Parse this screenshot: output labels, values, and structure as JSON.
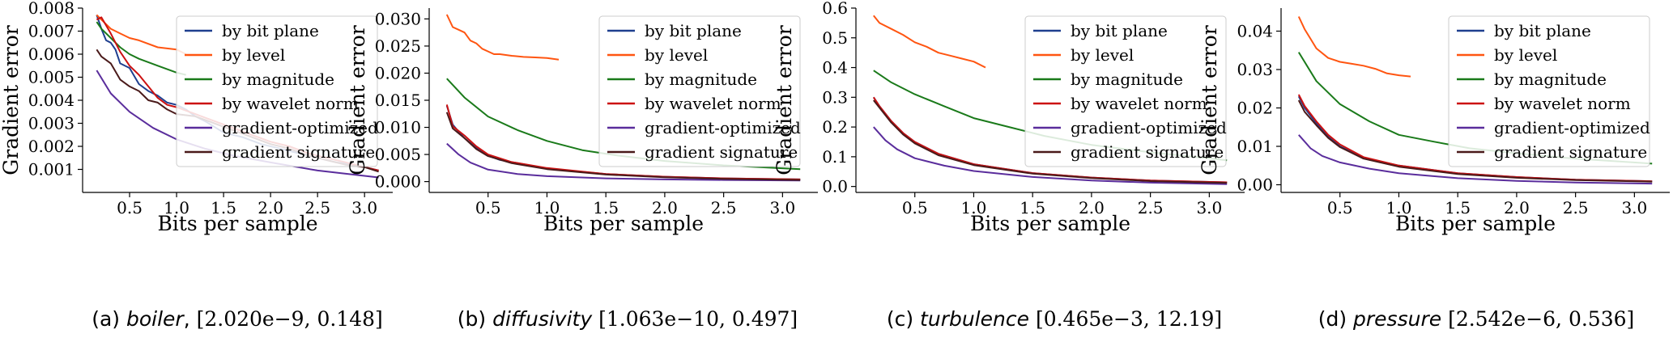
{
  "chart_data": [
    {
      "type": "line",
      "caption": {
        "prefix": "(a)",
        "dataset": "boiler",
        "sep": ",",
        "range": "[2.020e−9, 0.148]"
      },
      "xlabel": "Bits per sample",
      "ylabel": "Gradient error",
      "xlim": [
        0.0,
        3.3
      ],
      "ylim": [
        0.0,
        0.008
      ],
      "xticks": [
        0.5,
        1.0,
        1.5,
        2.0,
        2.5,
        3.0
      ],
      "xtick_labels": [
        "0.5",
        "1.0",
        "1.5",
        "2.0",
        "2.5",
        "3.0"
      ],
      "yticks": [
        0.001,
        0.002,
        0.003,
        0.004,
        0.005,
        0.006,
        0.007,
        0.008
      ],
      "ytick_labels": [
        "0.001",
        "0.002",
        "0.003",
        "0.004",
        "0.005",
        "0.006",
        "0.007",
        "0.008"
      ],
      "legend_position": "top-right",
      "series": [
        {
          "name": "by bit plane",
          "color": "#1f3f8f",
          "x": [
            0.15,
            0.2,
            0.25,
            0.3,
            0.35,
            0.4,
            0.5,
            0.6,
            0.7,
            0.8,
            0.9,
            1.0,
            1.1,
            1.2,
            1.3,
            1.5,
            1.7,
            1.9,
            2.1,
            2.3,
            2.5,
            2.7,
            2.9,
            3.15
          ],
          "y": [
            0.0077,
            0.0071,
            0.0066,
            0.0065,
            0.0062,
            0.0056,
            0.0054,
            0.0047,
            0.0044,
            0.0042,
            0.0039,
            0.0038,
            0.0036,
            0.0033,
            0.0031,
            0.0026,
            0.0024,
            0.0021,
            0.0019,
            0.0017,
            0.0015,
            0.0013,
            0.0012,
            0.00095
          ]
        },
        {
          "name": "by level",
          "color": "#ff5511",
          "x": [
            0.15,
            0.2,
            0.3,
            0.4,
            0.5,
            0.6,
            0.8,
            1.0,
            1.1
          ],
          "y": [
            0.0077,
            0.0075,
            0.0071,
            0.0069,
            0.0067,
            0.0066,
            0.0063,
            0.0062,
            0.006
          ]
        },
        {
          "name": "by magnitude",
          "color": "#1a7a1a",
          "x": [
            0.15,
            0.2,
            0.3,
            0.4,
            0.5,
            0.6,
            0.8,
            1.0,
            1.1
          ],
          "y": [
            0.0074,
            0.0071,
            0.0067,
            0.0063,
            0.006,
            0.0058,
            0.0055,
            0.0052,
            0.0051
          ]
        },
        {
          "name": "by wavelet norm",
          "color": "#cc1111",
          "x": [
            0.15,
            0.2,
            0.3,
            0.4,
            0.5,
            0.6,
            0.7,
            0.8,
            0.9,
            1.0,
            1.2,
            1.4,
            1.6,
            1.8,
            2.0,
            2.2,
            2.4,
            2.6,
            2.8,
            3.0,
            3.15
          ],
          "y": [
            0.0075,
            0.0076,
            0.0069,
            0.0061,
            0.0055,
            0.0051,
            0.0046,
            0.0041,
            0.0038,
            0.0037,
            0.0034,
            0.0031,
            0.0028,
            0.0025,
            0.0022,
            0.002,
            0.0017,
            0.0015,
            0.0013,
            0.0011,
            0.00095
          ]
        },
        {
          "name": "gradient-optimized",
          "color": "#5a2d9c",
          "x": [
            0.15,
            0.3,
            0.5,
            0.75,
            1.0,
            1.3,
            1.6,
            2.0,
            2.5,
            3.15
          ],
          "y": [
            0.0053,
            0.0043,
            0.0035,
            0.0028,
            0.0023,
            0.0019,
            0.0016,
            0.0013,
            0.00095,
            0.00065
          ]
        },
        {
          "name": "gradient signature",
          "color": "#4a1a1a",
          "x": [
            0.15,
            0.2,
            0.3,
            0.4,
            0.5,
            0.6,
            0.7,
            0.8,
            0.9,
            1.0,
            1.2,
            1.4,
            1.6,
            1.8,
            2.0,
            2.2,
            2.4,
            2.6,
            2.8,
            3.0,
            3.15
          ],
          "y": [
            0.0062,
            0.0059,
            0.0056,
            0.0049,
            0.0046,
            0.0044,
            0.004,
            0.0039,
            0.0036,
            0.0034,
            0.0033,
            0.003,
            0.0027,
            0.0024,
            0.0021,
            0.0019,
            0.0016,
            0.0014,
            0.0012,
            0.0011,
            0.0009
          ]
        }
      ]
    },
    {
      "type": "line",
      "caption": {
        "prefix": "(b)",
        "dataset": "diffusivity",
        "sep": "",
        "range": "[1.063e−10, 0.497]"
      },
      "xlabel": "Bits per sample",
      "ylabel": "Gradient error",
      "xlim": [
        0.0,
        3.3
      ],
      "ylim": [
        -0.002,
        0.032
      ],
      "xticks": [
        0.5,
        1.0,
        1.5,
        2.0,
        2.5,
        3.0
      ],
      "xtick_labels": [
        "0.5",
        "1.0",
        "1.5",
        "2.0",
        "2.5",
        "3.0"
      ],
      "yticks": [
        0.0,
        0.005,
        0.01,
        0.015,
        0.02,
        0.025,
        0.03
      ],
      "ytick_labels": [
        "0.000",
        "0.005",
        "0.010",
        "0.015",
        "0.020",
        "0.025",
        "0.030"
      ],
      "legend_position": "top-right",
      "series": [
        {
          "name": "by bit plane",
          "color": "#1f3f8f",
          "x": [
            0.15,
            0.2,
            0.25,
            0.3,
            0.4,
            0.5,
            0.6,
            0.8,
            1.0,
            1.5,
            2.0,
            2.5,
            3.15
          ],
          "y": [
            0.014,
            0.0105,
            0.0092,
            0.008,
            0.0062,
            0.0048,
            0.004,
            0.0032,
            0.0024,
            0.0014,
            0.0009,
            0.0006,
            0.0004
          ]
        },
        {
          "name": "by level",
          "color": "#ff5511",
          "x": [
            0.15,
            0.2,
            0.25,
            0.3,
            0.35,
            0.4,
            0.45,
            0.5,
            0.55,
            0.6,
            0.7,
            0.8,
            0.9,
            1.0,
            1.1
          ],
          "y": [
            0.0308,
            0.0285,
            0.028,
            0.0275,
            0.026,
            0.0255,
            0.0245,
            0.024,
            0.0235,
            0.0235,
            0.0232,
            0.023,
            0.0229,
            0.0228,
            0.0225
          ]
        },
        {
          "name": "by magnitude",
          "color": "#1a7a1a",
          "x": [
            0.15,
            0.3,
            0.5,
            0.75,
            1.0,
            1.3,
            1.6,
            2.0,
            2.5,
            3.15
          ],
          "y": [
            0.019,
            0.0155,
            0.012,
            0.0095,
            0.0075,
            0.0058,
            0.0048,
            0.0038,
            0.003,
            0.0023
          ]
        },
        {
          "name": "by wavelet norm",
          "color": "#cc1111",
          "x": [
            0.15,
            0.2,
            0.3,
            0.4,
            0.5,
            0.7,
            1.0,
            1.5,
            2.0,
            2.5,
            3.15
          ],
          "y": [
            0.0142,
            0.0102,
            0.0085,
            0.0065,
            0.005,
            0.0036,
            0.0025,
            0.0014,
            0.0009,
            0.0006,
            0.0004
          ]
        },
        {
          "name": "gradient-optimized",
          "color": "#5a2d9c",
          "x": [
            0.15,
            0.25,
            0.35,
            0.5,
            0.75,
            1.0,
            1.5,
            2.0,
            2.5,
            3.15
          ],
          "y": [
            0.007,
            0.005,
            0.0035,
            0.0022,
            0.0014,
            0.001,
            0.0006,
            0.0004,
            0.0003,
            0.0002
          ]
        },
        {
          "name": "gradient signature",
          "color": "#4a1a1a",
          "x": [
            0.15,
            0.2,
            0.3,
            0.4,
            0.5,
            0.7,
            1.0,
            1.5,
            2.0,
            2.5,
            3.15
          ],
          "y": [
            0.0128,
            0.0098,
            0.008,
            0.006,
            0.0047,
            0.0034,
            0.0023,
            0.0013,
            0.0008,
            0.0005,
            0.0003
          ]
        }
      ]
    },
    {
      "type": "line",
      "caption": {
        "prefix": "(c)",
        "dataset": "turbulence",
        "sep": "",
        "range": "[0.465e−3, 12.19]"
      },
      "xlabel": "Bits per sample",
      "ylabel": "Gradient error",
      "xlim": [
        0.0,
        3.3
      ],
      "ylim": [
        -0.02,
        0.6
      ],
      "xticks": [
        0.5,
        1.0,
        1.5,
        2.0,
        2.5,
        3.0
      ],
      "xtick_labels": [
        "0.5",
        "1.0",
        "1.5",
        "2.0",
        "2.5",
        "3.0"
      ],
      "yticks": [
        0.0,
        0.1,
        0.2,
        0.3,
        0.4,
        0.5,
        0.6
      ],
      "ytick_labels": [
        "0.0",
        "0.1",
        "0.2",
        "0.3",
        "0.4",
        "0.5",
        "0.6"
      ],
      "legend_position": "top-right",
      "series": [
        {
          "name": "by bit plane",
          "color": "#1f3f8f",
          "x": [
            0.15,
            0.2,
            0.3,
            0.4,
            0.5,
            0.7,
            1.0,
            1.5,
            2.0,
            2.5,
            3.15
          ],
          "y": [
            0.3,
            0.27,
            0.22,
            0.18,
            0.15,
            0.11,
            0.075,
            0.045,
            0.03,
            0.02,
            0.014
          ]
        },
        {
          "name": "by level",
          "color": "#ff5511",
          "x": [
            0.15,
            0.2,
            0.3,
            0.4,
            0.5,
            0.6,
            0.7,
            0.8,
            0.9,
            1.0,
            1.1
          ],
          "y": [
            0.575,
            0.55,
            0.53,
            0.51,
            0.485,
            0.47,
            0.45,
            0.44,
            0.43,
            0.42,
            0.4
          ]
        },
        {
          "name": "by magnitude",
          "color": "#1a7a1a",
          "x": [
            0.15,
            0.3,
            0.5,
            0.75,
            1.0,
            1.3,
            1.6,
            2.0,
            2.5,
            3.15
          ],
          "y": [
            0.39,
            0.35,
            0.31,
            0.27,
            0.23,
            0.2,
            0.17,
            0.14,
            0.115,
            0.088
          ]
        },
        {
          "name": "by wavelet norm",
          "color": "#cc1111",
          "x": [
            0.15,
            0.2,
            0.3,
            0.4,
            0.5,
            0.7,
            1.0,
            1.5,
            2.0,
            2.5,
            3.15
          ],
          "y": [
            0.3,
            0.27,
            0.22,
            0.18,
            0.15,
            0.11,
            0.075,
            0.045,
            0.03,
            0.02,
            0.014
          ]
        },
        {
          "name": "gradient-optimized",
          "color": "#5a2d9c",
          "x": [
            0.15,
            0.25,
            0.35,
            0.5,
            0.75,
            1.0,
            1.5,
            2.0,
            2.5,
            3.15
          ],
          "y": [
            0.2,
            0.155,
            0.125,
            0.095,
            0.07,
            0.052,
            0.032,
            0.02,
            0.013,
            0.008
          ]
        },
        {
          "name": "gradient signature",
          "color": "#4a1a1a",
          "x": [
            0.15,
            0.2,
            0.3,
            0.4,
            0.5,
            0.7,
            1.0,
            1.5,
            2.0,
            2.5,
            3.15
          ],
          "y": [
            0.29,
            0.265,
            0.215,
            0.175,
            0.145,
            0.105,
            0.072,
            0.043,
            0.028,
            0.018,
            0.012
          ]
        }
      ]
    },
    {
      "type": "line",
      "caption": {
        "prefix": "(d)",
        "dataset": "pressure",
        "sep": "",
        "range": "[2.542e−6, 0.536]"
      },
      "xlabel": "Bits per sample",
      "ylabel": "Gradient error",
      "xlim": [
        0.0,
        3.3
      ],
      "ylim": [
        -0.002,
        0.046
      ],
      "xticks": [
        0.5,
        1.0,
        1.5,
        2.0,
        2.5,
        3.0
      ],
      "xtick_labels": [
        "0.5",
        "1.0",
        "1.5",
        "2.0",
        "2.5",
        "3.0"
      ],
      "yticks": [
        0.0,
        0.01,
        0.02,
        0.03,
        0.04
      ],
      "ytick_labels": [
        "0.00",
        "0.01",
        "0.02",
        "0.03",
        "0.04"
      ],
      "legend_position": "top-right",
      "series": [
        {
          "name": "by bit plane",
          "color": "#1f3f8f",
          "x": [
            0.15,
            0.2,
            0.3,
            0.4,
            0.5,
            0.7,
            1.0,
            1.5,
            2.0,
            2.5,
            3.15
          ],
          "y": [
            0.023,
            0.02,
            0.016,
            0.0125,
            0.01,
            0.007,
            0.005,
            0.003,
            0.002,
            0.0013,
            0.0009
          ]
        },
        {
          "name": "by level",
          "color": "#ff5511",
          "x": [
            0.15,
            0.2,
            0.25,
            0.3,
            0.4,
            0.5,
            0.6,
            0.7,
            0.8,
            0.9,
            1.0,
            1.1
          ],
          "y": [
            0.0438,
            0.0405,
            0.038,
            0.0355,
            0.033,
            0.032,
            0.0315,
            0.031,
            0.0302,
            0.029,
            0.0285,
            0.0282
          ]
        },
        {
          "name": "by magnitude",
          "color": "#1a7a1a",
          "x": [
            0.15,
            0.3,
            0.5,
            0.75,
            1.0,
            1.3,
            1.6,
            2.0,
            2.5,
            3.15
          ],
          "y": [
            0.0345,
            0.027,
            0.021,
            0.0165,
            0.013,
            0.0112,
            0.0095,
            0.0082,
            0.0068,
            0.0055
          ]
        },
        {
          "name": "by wavelet norm",
          "color": "#cc1111",
          "x": [
            0.15,
            0.2,
            0.3,
            0.4,
            0.5,
            0.7,
            1.0,
            1.5,
            2.0,
            2.5,
            3.15
          ],
          "y": [
            0.0235,
            0.0205,
            0.0165,
            0.013,
            0.0105,
            0.0072,
            0.005,
            0.003,
            0.002,
            0.0013,
            0.0009
          ]
        },
        {
          "name": "gradient-optimized",
          "color": "#5a2d9c",
          "x": [
            0.15,
            0.25,
            0.35,
            0.5,
            0.75,
            1.0,
            1.5,
            2.0,
            2.5,
            3.15
          ],
          "y": [
            0.013,
            0.0095,
            0.0075,
            0.0058,
            0.0042,
            0.003,
            0.0017,
            0.001,
            0.0006,
            0.0003
          ]
        },
        {
          "name": "gradient signature",
          "color": "#4a1a1a",
          "x": [
            0.15,
            0.2,
            0.3,
            0.4,
            0.5,
            0.7,
            1.0,
            1.5,
            2.0,
            2.5,
            3.15
          ],
          "y": [
            0.022,
            0.019,
            0.0155,
            0.0122,
            0.0098,
            0.0068,
            0.0047,
            0.0028,
            0.0018,
            0.0012,
            0.0008
          ]
        }
      ]
    }
  ]
}
